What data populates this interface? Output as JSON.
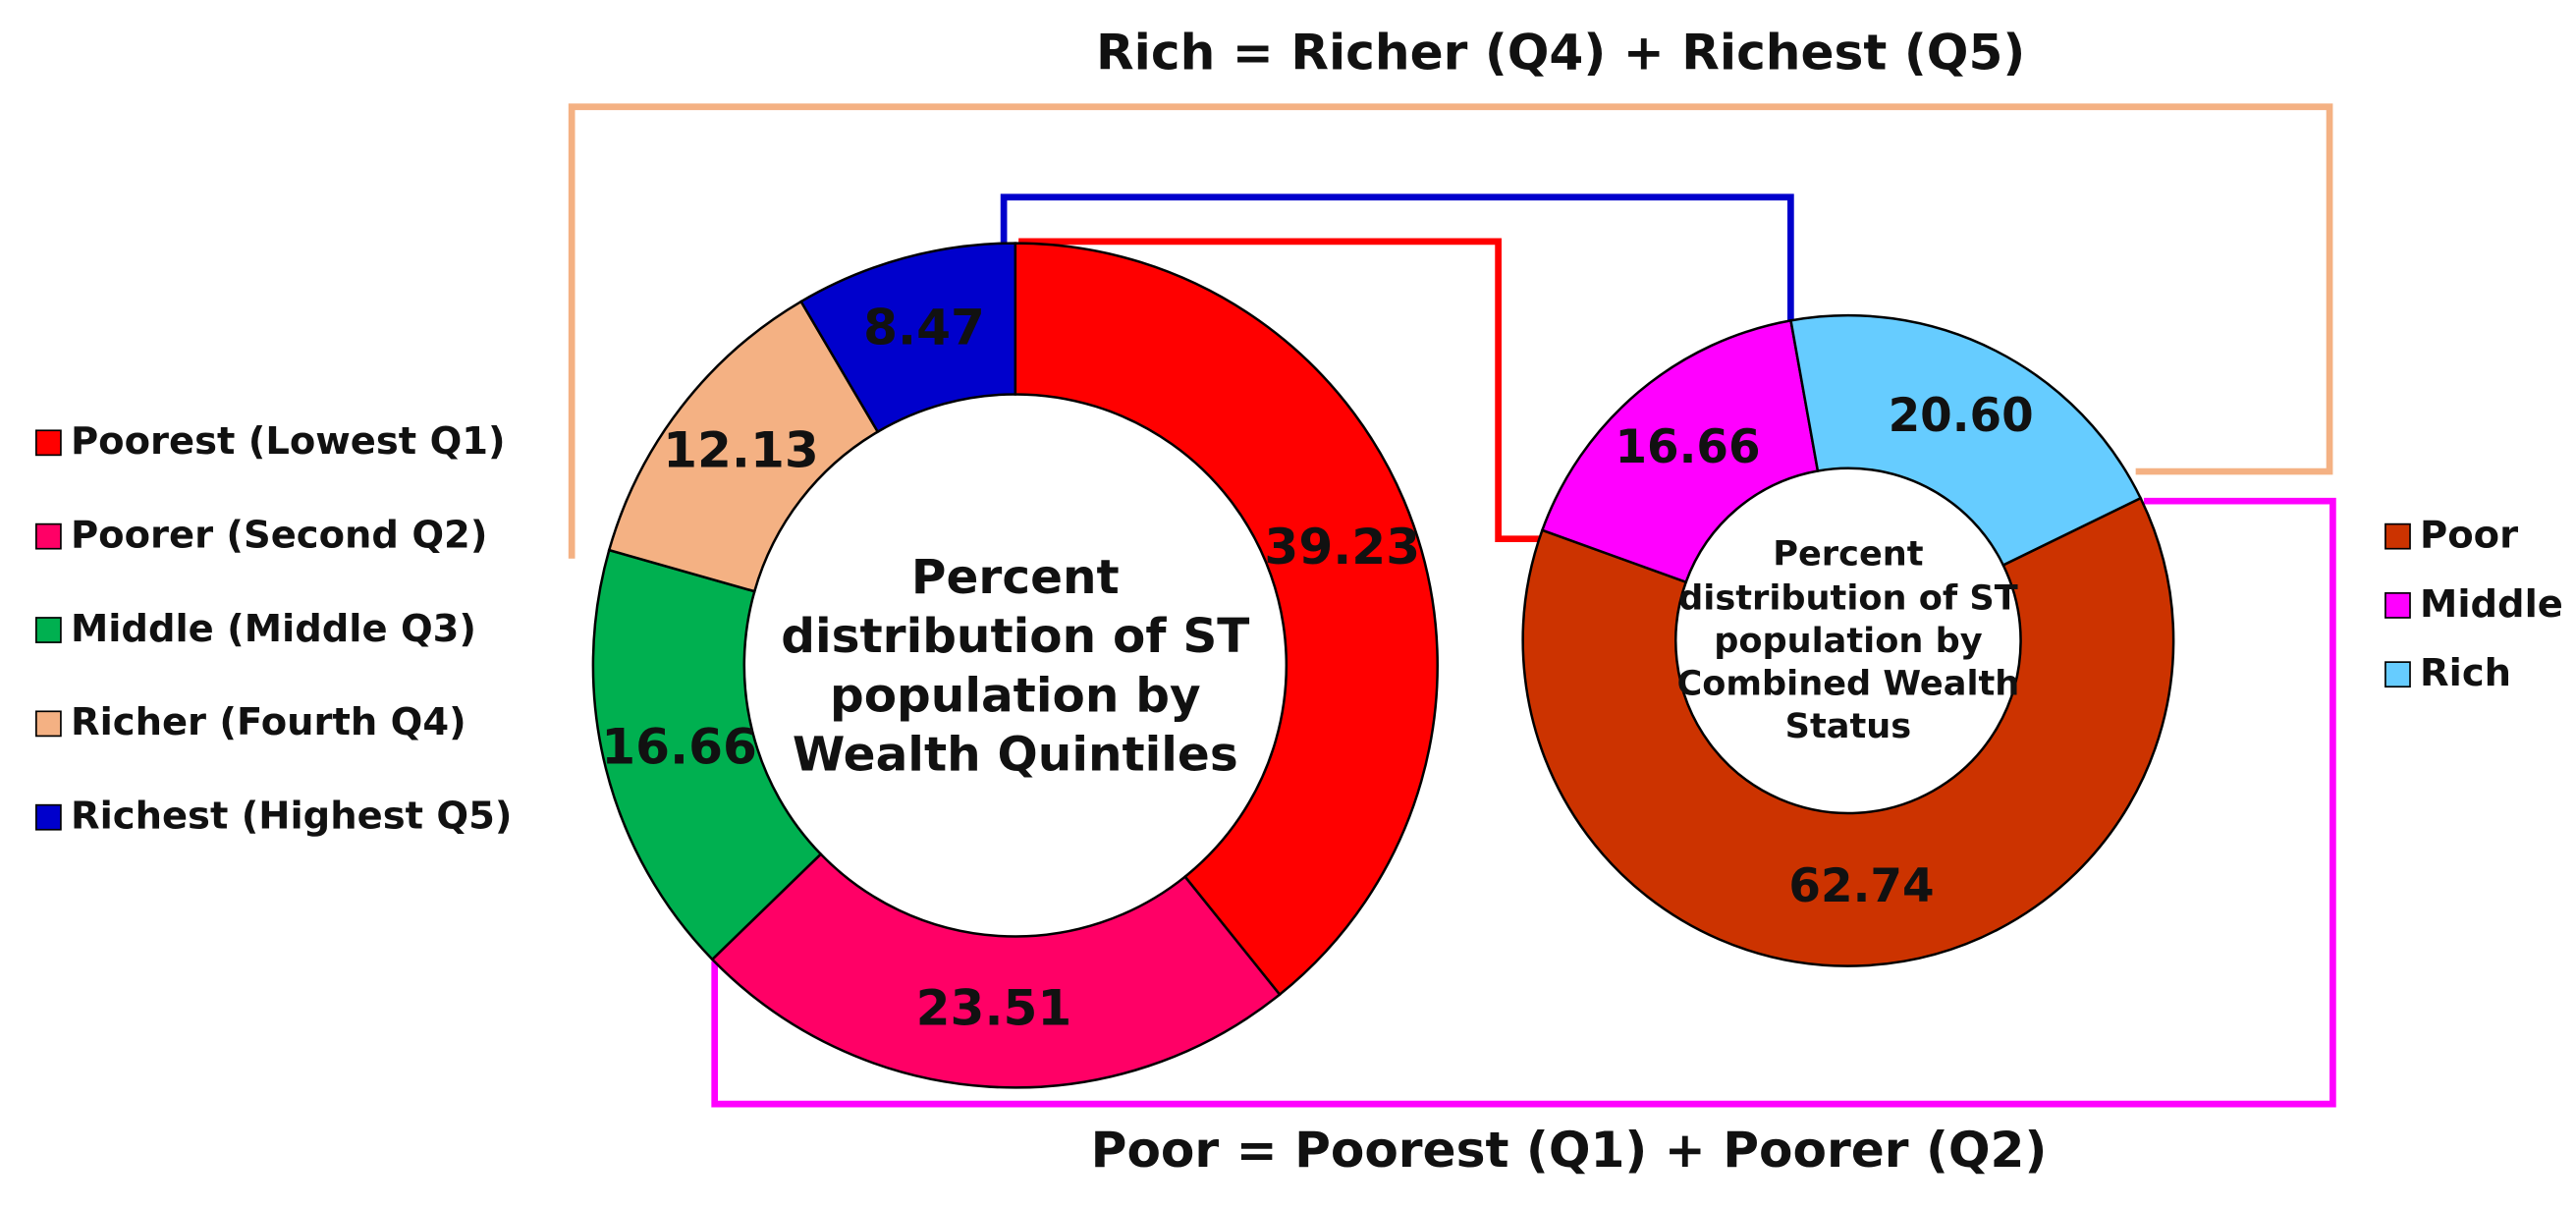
{
  "chart_data": [
    {
      "type": "pie",
      "donut": true,
      "title": "Percent distribution of ST population by Wealth Quintiles",
      "categories": [
        "Poorest (Lowest Q1)",
        "Poorer (Second Q2)",
        "Middle (Middle Q3)",
        "Richer (Fourth Q4)",
        "Richest (Highest Q5)"
      ],
      "values": [
        39.23,
        23.51,
        16.66,
        12.13,
        8.47
      ],
      "value_labels": [
        "39.23",
        "23.51",
        "16.66",
        "12.13",
        "8.47"
      ],
      "colors": [
        "#ff0000",
        "#ff0066",
        "#00b050",
        "#f4b183",
        "#0000cc"
      ]
    },
    {
      "type": "pie",
      "donut": true,
      "title": "Percent distribution of ST population by Combined Wealth Status",
      "categories": [
        "Poor",
        "Middle",
        "Rich"
      ],
      "values": [
        62.74,
        16.66,
        20.6
      ],
      "value_labels": [
        "62.74",
        "16.66",
        "20.60"
      ],
      "colors": [
        "#cc3300",
        "#ff00ff",
        "#66ccff"
      ]
    }
  ],
  "annotations": [
    "Rich = Richer (Q4) + Richest (Q5)",
    "Poor = Poorest (Q1) + Poorer (Q2)"
  ]
}
